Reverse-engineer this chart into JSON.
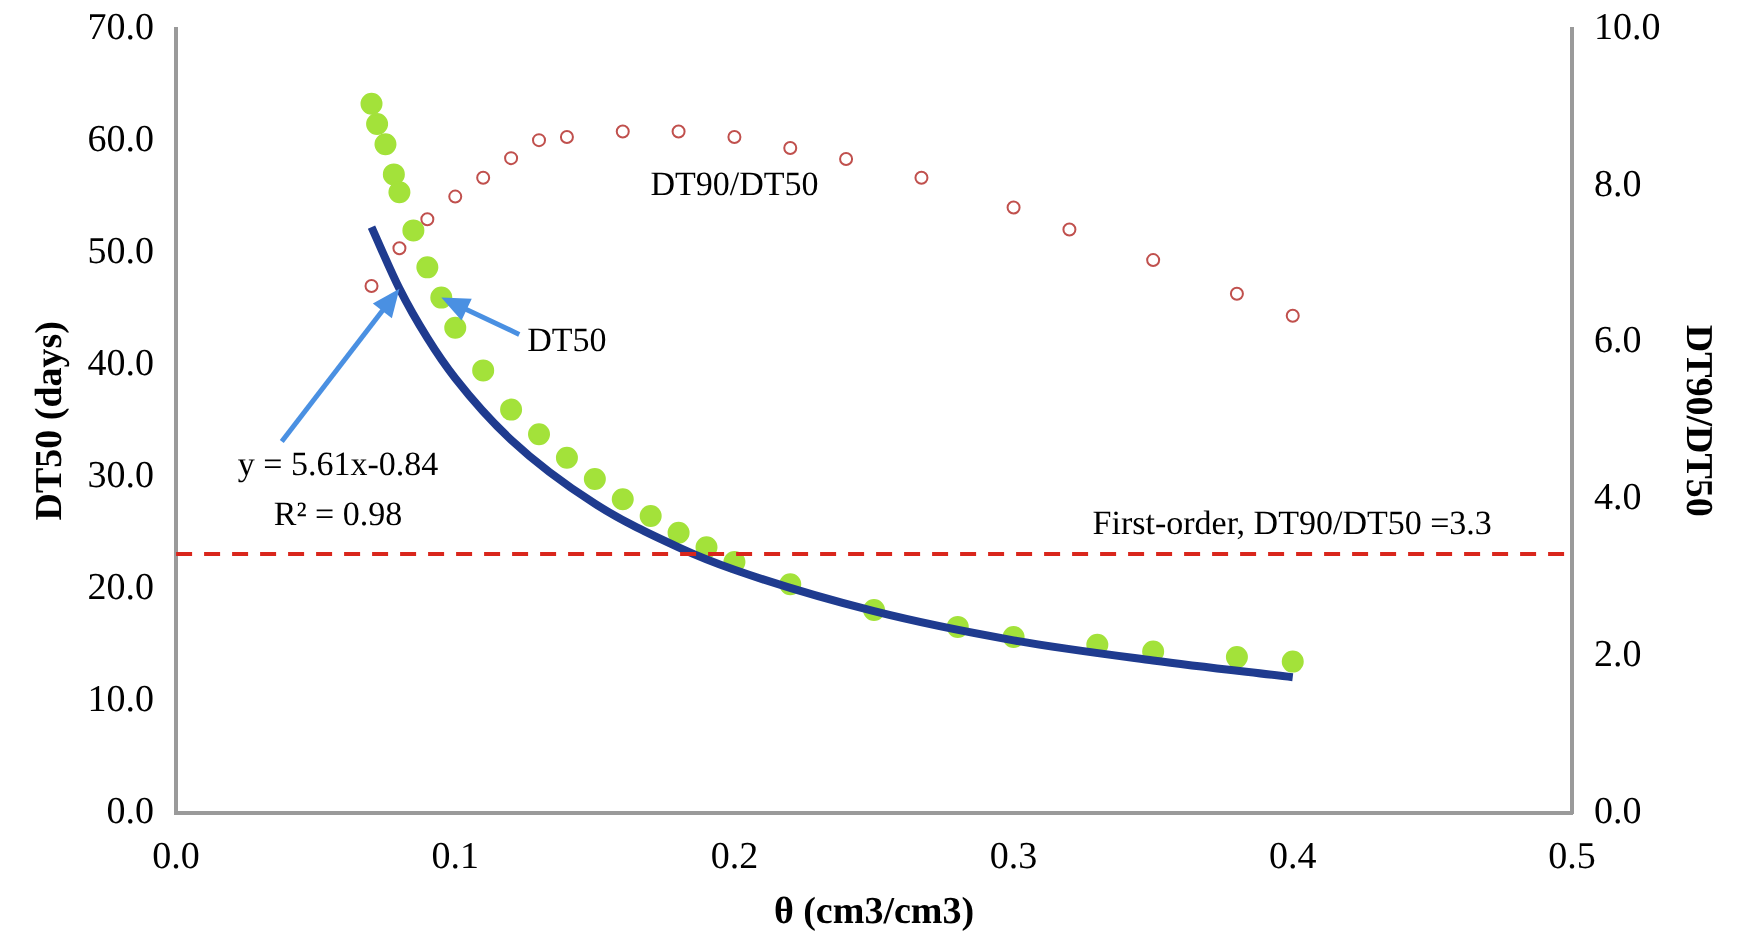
{
  "chart_data": {
    "type": "scatter",
    "xlabel": "θ (cm3/cm3)",
    "ylabel": "DT50 (days)",
    "y2label": "DT90/DT50",
    "xlim": [
      0,
      0.5
    ],
    "xticks": [
      {
        "value": 0,
        "label": "0.0"
      },
      {
        "value": 0.1,
        "label": "0.1"
      },
      {
        "value": 0.2,
        "label": "0.2"
      },
      {
        "value": 0.3,
        "label": "0.3"
      },
      {
        "value": 0.4,
        "label": "0.4"
      },
      {
        "value": 0.5,
        "label": "0.5"
      }
    ],
    "ylim": [
      0,
      70
    ],
    "yticks": [
      {
        "value": 0,
        "label": "0.0"
      },
      {
        "value": 10,
        "label": "10.0"
      },
      {
        "value": 20,
        "label": "20.0"
      },
      {
        "value": 30,
        "label": "30.0"
      },
      {
        "value": 40,
        "label": "40.0"
      },
      {
        "value": 50,
        "label": "50.0"
      },
      {
        "value": 60,
        "label": "60.0"
      },
      {
        "value": 70,
        "label": "70.0"
      }
    ],
    "y2lim": [
      0,
      10
    ],
    "y2ticks": [
      {
        "value": 0,
        "label": "0.0"
      },
      {
        "value": 2,
        "label": "2.0"
      },
      {
        "value": 4,
        "label": "4.0"
      },
      {
        "value": 6,
        "label": "6.0"
      },
      {
        "value": 8,
        "label": "8.0"
      },
      {
        "value": 10,
        "label": "10.0"
      }
    ],
    "grid": false,
    "legend": false,
    "series": [
      {
        "marker": "circle",
        "color": "#a3e23a",
        "x": [
          0.07,
          0.072,
          0.075,
          0.078,
          0.08,
          0.085,
          0.09,
          0.095,
          0.1,
          0.11,
          0.12,
          0.13,
          0.14,
          0.15,
          0.16,
          0.17,
          0.18,
          0.19,
          0.2,
          0.22,
          0.25,
          0.28,
          0.3,
          0.33,
          0.35,
          0.38,
          0.4
        ],
        "values": [
          63.3,
          61.5,
          59.7,
          57.0,
          55.4,
          52.0,
          48.7,
          46.0,
          43.3,
          39.5,
          36.0,
          33.8,
          31.7,
          29.8,
          28.0,
          26.5,
          25.0,
          23.7,
          22.4,
          20.4,
          18.1,
          16.6,
          15.7,
          15.0,
          14.4,
          13.9,
          13.5
        ]
      },
      {
        "marker": "circle",
        "axis": "y2",
        "color": "#c0504d",
        "x": [
          0.07,
          0.08,
          0.09,
          0.1,
          0.11,
          0.12,
          0.13,
          0.14,
          0.16,
          0.18,
          0.2,
          0.22,
          0.24,
          0.267,
          0.3,
          0.32,
          0.35,
          0.38,
          0.4
        ],
        "values": [
          6.72,
          7.2,
          7.57,
          7.86,
          8.1,
          8.35,
          8.58,
          8.62,
          8.69,
          8.69,
          8.62,
          8.48,
          8.34,
          8.1,
          7.72,
          7.44,
          7.05,
          6.62,
          6.34
        ]
      },
      {
        "type": "line",
        "marker": "none",
        "line_style": "solid",
        "color": "#1f3b8f",
        "x": [
          0.07,
          0.08,
          0.09,
          0.1,
          0.12,
          0.15,
          0.18,
          0.2,
          0.25,
          0.3,
          0.35,
          0.4
        ],
        "values": [
          52.3,
          46.8,
          42.4,
          38.8,
          33.3,
          27.6,
          23.7,
          21.7,
          18.0,
          15.4,
          13.6,
          12.1
        ]
      }
    ],
    "ref_lines": [
      {
        "axis": "y2",
        "value": 3.3,
        "label": "First-order, DT90/DT50 =3.3",
        "color": "#d9261c",
        "line_style": "dashed"
      }
    ],
    "annotations": [
      "DT90/DT50",
      {
        "text": "DT50",
        "x": 0.095,
        "y": 46
      },
      {
        "text": "y = 5.61x-0.84",
        "x": 0.08,
        "y": 46.8
      },
      "R² = 0.98"
    ]
  }
}
